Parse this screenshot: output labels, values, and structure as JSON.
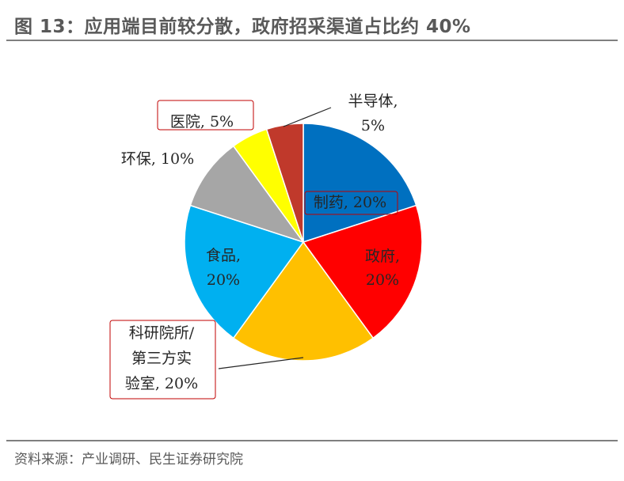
{
  "header": {
    "title": "图 13：应用端目前较分散，政府招采渠道占比约 40%"
  },
  "footer": {
    "source": "资料来源：产业调研、民生证券研究院"
  },
  "chart_data": {
    "type": "pie",
    "title": "",
    "start_angle_deg": 0,
    "direction": "clockwise",
    "slices": [
      {
        "name": "制药",
        "value": 20,
        "label_lines": [
          "制药, 20%"
        ],
        "color": "#0070c0",
        "boxed": true
      },
      {
        "name": "政府",
        "value": 20,
        "label_lines": [
          "政府,",
          "20%"
        ],
        "color": "#ff0000",
        "boxed": false
      },
      {
        "name": "科研院所/第三方实验室",
        "value": 20,
        "label_lines": [
          "科研院所/",
          "第三方实",
          "验室, 20%"
        ],
        "color": "#ffc000",
        "boxed": true
      },
      {
        "name": "食品",
        "value": 20,
        "label_lines": [
          "食品,",
          "20%"
        ],
        "color": "#00b0f0",
        "boxed": false
      },
      {
        "name": "环保",
        "value": 10,
        "label_lines": [
          "环保, 10%"
        ],
        "color": "#a6a6a6",
        "boxed": false
      },
      {
        "name": "医院",
        "value": 5,
        "label_lines": [
          "医院, 5%"
        ],
        "color": "#ffff00",
        "boxed": true
      },
      {
        "name": "半导体",
        "value": 5,
        "label_lines": [
          "半导体,",
          "5%"
        ],
        "color": "#c0392b",
        "boxed": false
      }
    ]
  }
}
